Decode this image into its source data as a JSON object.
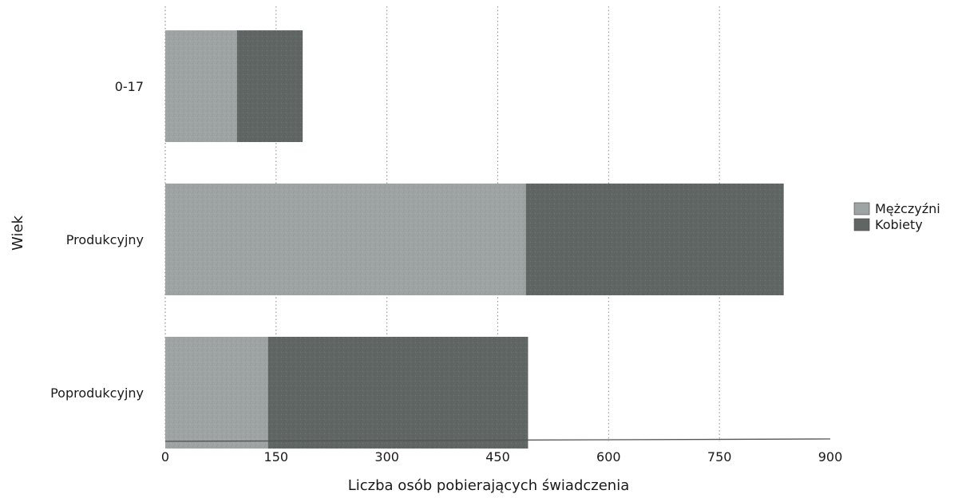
{
  "chart_data": {
    "type": "bar",
    "orientation": "horizontal",
    "stacked": true,
    "xlabel": "Liczba osób pobierających świadczenia",
    "ylabel": "Wiek",
    "xlim": [
      0,
      900
    ],
    "xticks": [
      0,
      150,
      300,
      450,
      600,
      750,
      900
    ],
    "categories": [
      "0-17",
      "Produkcyjny",
      "Poprodukcyjny"
    ],
    "series": [
      {
        "name": "Mężczyźni",
        "values": [
          97,
          488,
          139
        ],
        "color": "#9ea3a3"
      },
      {
        "name": "Kobiety",
        "values": [
          89,
          349,
          352
        ],
        "color": "#5f6664"
      }
    ],
    "grid": "vertical-dotted",
    "legend_position": "right"
  }
}
